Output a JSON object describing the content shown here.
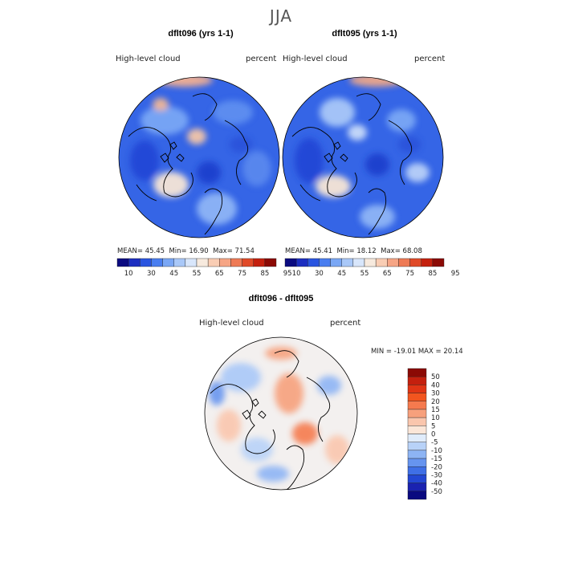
{
  "header": {
    "season": "JJA"
  },
  "panels": [
    {
      "title": "dflt096 (yrs 1-1)",
      "variable": "High-level cloud",
      "units": "percent",
      "stats": {
        "mean_label": "MEAN=",
        "mean": "45.45",
        "min_label": "Min=",
        "min": "16.90",
        "max_label": "Max=",
        "max": "71.54"
      }
    },
    {
      "title": "dflt095 (yrs 1-1)",
      "variable": "High-level cloud",
      "units": "percent",
      "stats": {
        "mean_label": "MEAN=",
        "mean": "45.41",
        "min_label": "Min=",
        "min": "18.12",
        "max_label": "Max=",
        "max": "68.08"
      }
    }
  ],
  "diff": {
    "title": "dflt096 - dflt095",
    "variable": "High-level cloud",
    "units": "percent",
    "stats": {
      "min_label": "MIN =",
      "min": "-19.01",
      "max_label": "MAX =",
      "max": "20.14"
    }
  },
  "colorbar_abs": {
    "labels": [
      "10",
      "30",
      "45",
      "55",
      "65",
      "75",
      "85",
      "95"
    ],
    "colors": [
      "#0b0b80",
      "#1c2ec0",
      "#2a55e0",
      "#4a7ef0",
      "#7aa7f5",
      "#a9c8f8",
      "#d8e6fb",
      "#f7eade",
      "#f9cdb4",
      "#f6a585",
      "#ee7a55",
      "#e04a28",
      "#c4200e",
      "#8b0a05"
    ]
  },
  "colorbar_diff": {
    "labels": [
      "50",
      "40",
      "30",
      "20",
      "15",
      "10",
      "5",
      "0",
      "-5",
      "-10",
      "-15",
      "-20",
      "-30",
      "-40",
      "-50"
    ],
    "colors": [
      "#8b0a05",
      "#c4200e",
      "#e03515",
      "#f2551f",
      "#f57a4e",
      "#f7a07c",
      "#fac6ad",
      "#fbe6d8",
      "#e0ecfb",
      "#b8d2f8",
      "#8db4f4",
      "#6694ef",
      "#3f6fe6",
      "#2347d3",
      "#1a22b0",
      "#0a0a80"
    ]
  }
}
